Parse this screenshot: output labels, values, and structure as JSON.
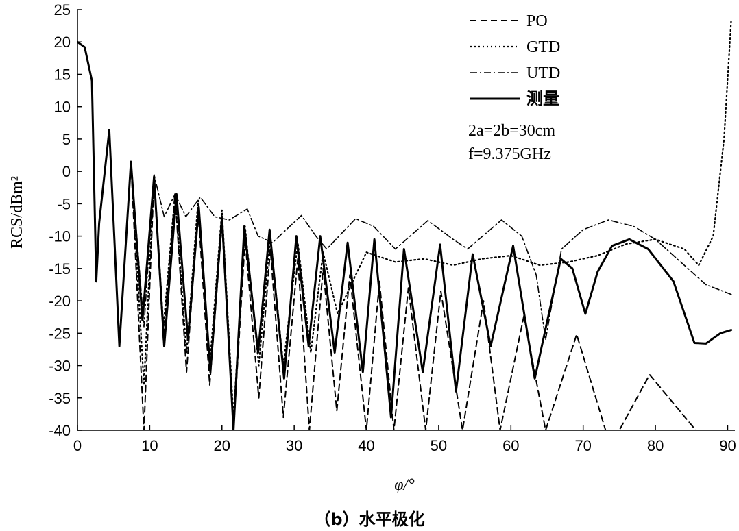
{
  "caption": "（b）水平极化",
  "chart_data": {
    "type": "line",
    "xlabel": "φ/°",
    "ylabel": "RCS/dBm²",
    "xlim": [
      0,
      91
    ],
    "ylim": [
      -40,
      25
    ],
    "xticks": [
      0,
      10,
      20,
      30,
      40,
      50,
      60,
      70,
      80,
      90
    ],
    "yticks": [
      25,
      20,
      15,
      10,
      5,
      0,
      -5,
      -10,
      -15,
      -20,
      -25,
      -30,
      -35,
      -40
    ],
    "grid": false,
    "legend_position": "top-right",
    "annotations": [
      "2a=2b=30cm",
      "f=9.375GHz"
    ],
    "series": [
      {
        "name": "PO",
        "style": "dashed",
        "points": [
          [
            0,
            20
          ],
          [
            1,
            19.2
          ],
          [
            2,
            14
          ],
          [
            2.6,
            -16
          ],
          [
            3,
            -8
          ],
          [
            4.4,
            6.3
          ],
          [
            5.8,
            -27
          ],
          [
            7.4,
            1.4
          ],
          [
            9.2,
            -40
          ],
          [
            10.6,
            -1
          ],
          [
            11.9,
            -26
          ],
          [
            13.5,
            -3.5
          ],
          [
            15.1,
            -31
          ],
          [
            16.7,
            -6
          ],
          [
            18.3,
            -33
          ],
          [
            20,
            -8
          ],
          [
            21.6,
            -40
          ],
          [
            23.2,
            -10.5
          ],
          [
            25.1,
            -35
          ],
          [
            26.7,
            -12
          ],
          [
            28.5,
            -38
          ],
          [
            30.5,
            -13.5
          ],
          [
            32.1,
            -40
          ],
          [
            34,
            -15
          ],
          [
            35.9,
            -37
          ],
          [
            37.7,
            -16
          ],
          [
            40,
            -40
          ],
          [
            41.8,
            -17
          ],
          [
            43.8,
            -40
          ],
          [
            45.8,
            -18
          ],
          [
            48.2,
            -40
          ],
          [
            50.3,
            -18.5
          ],
          [
            53.3,
            -40
          ],
          [
            56.2,
            -20
          ],
          [
            58.5,
            -40
          ],
          [
            61.8,
            -22.3
          ],
          [
            64.8,
            -40
          ],
          [
            69.1,
            -25.2
          ],
          [
            73.1,
            -40
          ],
          [
            75,
            -40
          ],
          [
            79.2,
            -31.4
          ],
          [
            85.6,
            -40
          ]
        ]
      },
      {
        "name": "GTD",
        "style": "dotted",
        "points": [
          [
            0,
            20
          ],
          [
            1,
            19.2
          ],
          [
            2,
            14
          ],
          [
            2.6,
            -16
          ],
          [
            3,
            -8
          ],
          [
            4.4,
            6.3
          ],
          [
            5.8,
            -27
          ],
          [
            7.4,
            1.4
          ],
          [
            9.2,
            -33
          ],
          [
            10.6,
            -0.5
          ],
          [
            11.9,
            -24
          ],
          [
            13.5,
            -3.5
          ],
          [
            15.1,
            -28
          ],
          [
            16.7,
            -4.5
          ],
          [
            18.3,
            -30
          ],
          [
            20,
            -6
          ],
          [
            21.6,
            -38
          ],
          [
            23.2,
            -8.5
          ],
          [
            25.1,
            -30
          ],
          [
            26.7,
            -10
          ],
          [
            28.5,
            -30
          ],
          [
            30.5,
            -11
          ],
          [
            32.3,
            -28
          ],
          [
            34,
            -12.5
          ],
          [
            36,
            -22
          ],
          [
            40,
            -12.5
          ],
          [
            44,
            -14
          ],
          [
            48,
            -13.5
          ],
          [
            52,
            -14.5
          ],
          [
            56,
            -13.5
          ],
          [
            60,
            -13
          ],
          [
            64,
            -14.5
          ],
          [
            68,
            -14
          ],
          [
            72,
            -13
          ],
          [
            76,
            -11.2
          ],
          [
            80,
            -10.5
          ],
          [
            84,
            -12
          ],
          [
            86,
            -14.5
          ],
          [
            88,
            -10
          ],
          [
            89.5,
            5
          ],
          [
            90.5,
            23.5
          ]
        ]
      },
      {
        "name": "UTD",
        "style": "dashdot",
        "points": [
          [
            0,
            20
          ],
          [
            1,
            19.2
          ],
          [
            2,
            14
          ],
          [
            2.6,
            -16
          ],
          [
            3,
            -8
          ],
          [
            4.4,
            6.3
          ],
          [
            5.8,
            -27
          ],
          [
            7.4,
            1.4
          ],
          [
            9.2,
            -24
          ],
          [
            10.6,
            -0.5
          ],
          [
            12,
            -7
          ],
          [
            13.5,
            -3.5
          ],
          [
            15,
            -7
          ],
          [
            17,
            -4
          ],
          [
            19,
            -7
          ],
          [
            21,
            -7.5
          ],
          [
            23.5,
            -5.8
          ],
          [
            25,
            -10
          ],
          [
            27,
            -11
          ],
          [
            31,
            -6.8
          ],
          [
            33,
            -10
          ],
          [
            34.5,
            -12
          ],
          [
            38.5,
            -7.3
          ],
          [
            41,
            -8.5
          ],
          [
            44,
            -12
          ],
          [
            48.5,
            -7.6
          ],
          [
            52,
            -10.5
          ],
          [
            54,
            -12
          ],
          [
            58.7,
            -7.5
          ],
          [
            61.5,
            -10
          ],
          [
            63.5,
            -16
          ],
          [
            64.8,
            -26
          ],
          [
            67,
            -12
          ],
          [
            70,
            -9
          ],
          [
            73.5,
            -7.5
          ],
          [
            77,
            -8.5
          ],
          [
            80,
            -10.5
          ],
          [
            84,
            -14.5
          ],
          [
            87,
            -17.5
          ],
          [
            90.5,
            -19
          ]
        ]
      },
      {
        "name": "测量",
        "style": "solid",
        "points": [
          [
            0,
            20
          ],
          [
            1,
            19.2
          ],
          [
            2,
            14
          ],
          [
            2.6,
            -17
          ],
          [
            3,
            -8
          ],
          [
            4.4,
            6.4
          ],
          [
            5.8,
            -27
          ],
          [
            7.4,
            1.5
          ],
          [
            9,
            -23
          ],
          [
            10.6,
            -0.8
          ],
          [
            12,
            -27
          ],
          [
            13.7,
            -3.5
          ],
          [
            15.3,
            -26
          ],
          [
            16.8,
            -5.5
          ],
          [
            18.4,
            -31
          ],
          [
            20,
            -7
          ],
          [
            21.6,
            -40
          ],
          [
            23.1,
            -8.5
          ],
          [
            25,
            -28
          ],
          [
            26.6,
            -9
          ],
          [
            28.6,
            -32
          ],
          [
            30.3,
            -10
          ],
          [
            32,
            -27
          ],
          [
            33.6,
            -10
          ],
          [
            35.6,
            -28
          ],
          [
            37.4,
            -11
          ],
          [
            39.5,
            -31
          ],
          [
            41.1,
            -10.5
          ],
          [
            43.4,
            -38
          ],
          [
            45.2,
            -12
          ],
          [
            47.8,
            -31
          ],
          [
            50.2,
            -11.3
          ],
          [
            52.4,
            -34
          ],
          [
            54.7,
            -12.8
          ],
          [
            57.2,
            -27
          ],
          [
            60.3,
            -11.5
          ],
          [
            63.3,
            -32
          ],
          [
            66.9,
            -13.5
          ],
          [
            68.5,
            -15
          ],
          [
            70.3,
            -22
          ],
          [
            72,
            -15.5
          ],
          [
            74,
            -11.5
          ],
          [
            76.4,
            -10.5
          ],
          [
            79,
            -12
          ],
          [
            82.5,
            -17
          ],
          [
            85.4,
            -26.5
          ],
          [
            87,
            -26.6
          ],
          [
            89,
            -25
          ],
          [
            90.5,
            -24.5
          ]
        ]
      }
    ]
  }
}
